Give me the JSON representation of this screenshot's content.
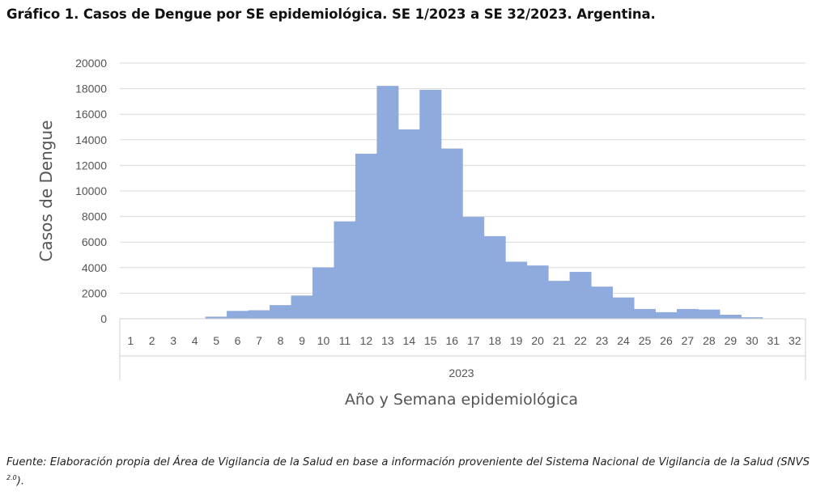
{
  "title": "Gráfico 1. Casos de Dengue por SE epidemiológica.  SE 1/2023 a SE 32/2023. Argentina.",
  "source": {
    "text": "Fuente: Elaboración propia del Área de Vigilancia de la Salud en base a información proveniente del Sistema Nacional de Vigilancia de la Salud (SNVS",
    "superscript": "2.0",
    "suffix": ")."
  },
  "chart_data": {
    "type": "bar",
    "title": "Gráfico 1. Casos de Dengue por SE epidemiológica.  SE 1/2023 a SE 32/2023. Argentina.",
    "xlabel": "Año y Semana epidemiológica",
    "ylabel": "Casos de Dengue",
    "group_label": "2023",
    "categories": [
      "1",
      "2",
      "3",
      "4",
      "5",
      "6",
      "7",
      "8",
      "9",
      "10",
      "11",
      "12",
      "13",
      "14",
      "15",
      "16",
      "17",
      "18",
      "19",
      "20",
      "21",
      "22",
      "23",
      "24",
      "25",
      "26",
      "27",
      "28",
      "29",
      "30",
      "31",
      "32"
    ],
    "values": [
      0,
      0,
      0,
      0,
      150,
      600,
      650,
      1050,
      1800,
      4000,
      7600,
      12900,
      18200,
      14800,
      17900,
      13300,
      7950,
      6450,
      4450,
      4150,
      2950,
      3650,
      2500,
      1650,
      750,
      500,
      750,
      700,
      300,
      100,
      0,
      0
    ],
    "ylim": [
      0,
      20000
    ],
    "yticks": [
      0,
      2000,
      4000,
      6000,
      8000,
      10000,
      12000,
      14000,
      16000,
      18000,
      20000
    ],
    "grid": true,
    "bar_color": "#8faadc",
    "gridline_color": "#d9d9d9"
  }
}
